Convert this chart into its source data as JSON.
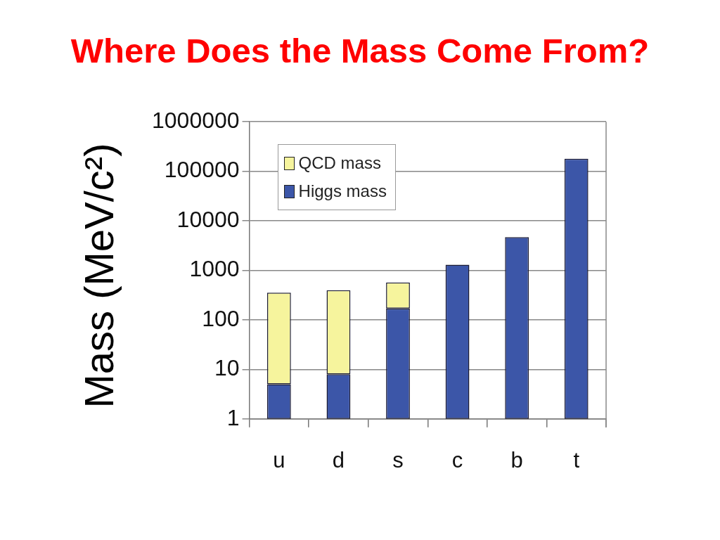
{
  "chart_data": {
    "type": "bar",
    "title": "Where Does the Mass Come From?",
    "ylabel": "Mass (MeV/c²)",
    "categories": [
      "u",
      "d",
      "s",
      "c",
      "b",
      "t"
    ],
    "series": [
      {
        "name": "Higgs mass",
        "color": "#3c56a8",
        "values": [
          5,
          8,
          170,
          1300,
          4700,
          180000
        ]
      },
      {
        "name": "QCD mass",
        "color": "#f6f49d",
        "values": [
          350,
          390,
          400,
          null,
          null,
          null
        ]
      }
    ],
    "stacked": true,
    "log": true,
    "ylim": [
      1,
      1000000
    ],
    "yticks": [
      1,
      10,
      100,
      1000,
      10000,
      100000,
      1000000
    ],
    "grid": "y",
    "legend": "top left"
  }
}
